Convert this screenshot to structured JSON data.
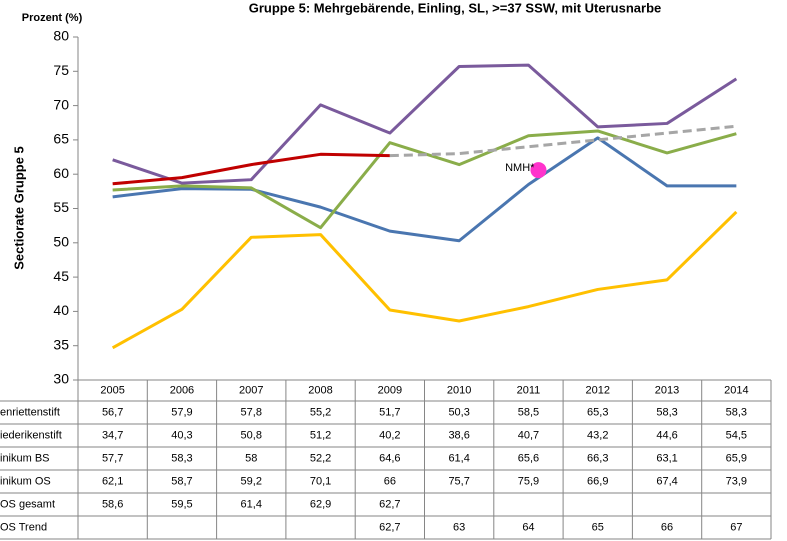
{
  "chart_data": {
    "type": "line",
    "title": "Gruppe 5: Mehrgebärende, Einling, SL, >=37 SSW, mit Uterusnarbe",
    "unit_label": "Prozent (%)",
    "y_label": "Sectiorate Gruppe 5",
    "categories": [
      "2005",
      "2006",
      "2007",
      "2008",
      "2009",
      "2010",
      "2011",
      "2012",
      "2013",
      "2014"
    ],
    "ylim": [
      30,
      80
    ],
    "yticks": [
      30,
      35,
      40,
      45,
      50,
      55,
      60,
      65,
      70,
      75,
      80
    ],
    "grid": false,
    "series": [
      {
        "name": "enriettenstift",
        "color": "#4a76b0",
        "dashed": false,
        "values": [
          56.7,
          57.9,
          57.8,
          55.2,
          51.7,
          50.3,
          58.5,
          65.3,
          58.3,
          58.3
        ],
        "value_labels": [
          "56,7",
          "57,9",
          "57,8",
          "55,2",
          "51,7",
          "50,3",
          "58,5",
          "65,3",
          "58,3",
          "58,3"
        ]
      },
      {
        "name": "iederikenstift",
        "color": "#ffc000",
        "dashed": false,
        "values": [
          34.7,
          40.3,
          50.8,
          51.2,
          40.2,
          38.6,
          40.7,
          43.2,
          44.6,
          54.5
        ],
        "value_labels": [
          "34,7",
          "40,3",
          "50,8",
          "51,2",
          "40,2",
          "38,6",
          "40,7",
          "43,2",
          "44,6",
          "54,5"
        ]
      },
      {
        "name": "inikum BS",
        "color": "#8aad4a",
        "dashed": false,
        "values": [
          57.7,
          58.3,
          58,
          52.2,
          64.6,
          61.4,
          65.6,
          66.3,
          63.1,
          65.9
        ],
        "value_labels": [
          "57,7",
          "58,3",
          "58",
          "52,2",
          "64,6",
          "61,4",
          "65,6",
          "66,3",
          "63,1",
          "65,9"
        ]
      },
      {
        "name": "inikum OS",
        "color": "#7a5a9c",
        "dashed": false,
        "values": [
          62.1,
          58.7,
          59.2,
          70.1,
          66,
          75.7,
          75.9,
          66.9,
          67.4,
          73.9
        ],
        "value_labels": [
          "62,1",
          "58,7",
          "59,2",
          "70,1",
          "66",
          "75,7",
          "75,9",
          "66,9",
          "67,4",
          "73,9"
        ]
      },
      {
        "name": "OS gesamt",
        "color": "#c00000",
        "dashed": false,
        "values": [
          58.6,
          59.5,
          61.4,
          62.9,
          62.7,
          null,
          null,
          null,
          null,
          null
        ],
        "value_labels": [
          "58,6",
          "59,5",
          "61,4",
          "62,9",
          "62,7",
          null,
          null,
          null,
          null,
          null
        ]
      },
      {
        "name": "OS Trend",
        "color": "#a6a6a6",
        "dashed": true,
        "values": [
          null,
          null,
          null,
          null,
          62.7,
          63,
          64,
          65,
          66,
          67
        ],
        "value_labels": [
          null,
          null,
          null,
          null,
          "62,7",
          "63",
          "64",
          "65",
          "66",
          "67"
        ]
      }
    ],
    "annotation": {
      "label": "NMH*",
      "value": 60.6,
      "category": "2011",
      "color": "#ff33cc"
    }
  }
}
